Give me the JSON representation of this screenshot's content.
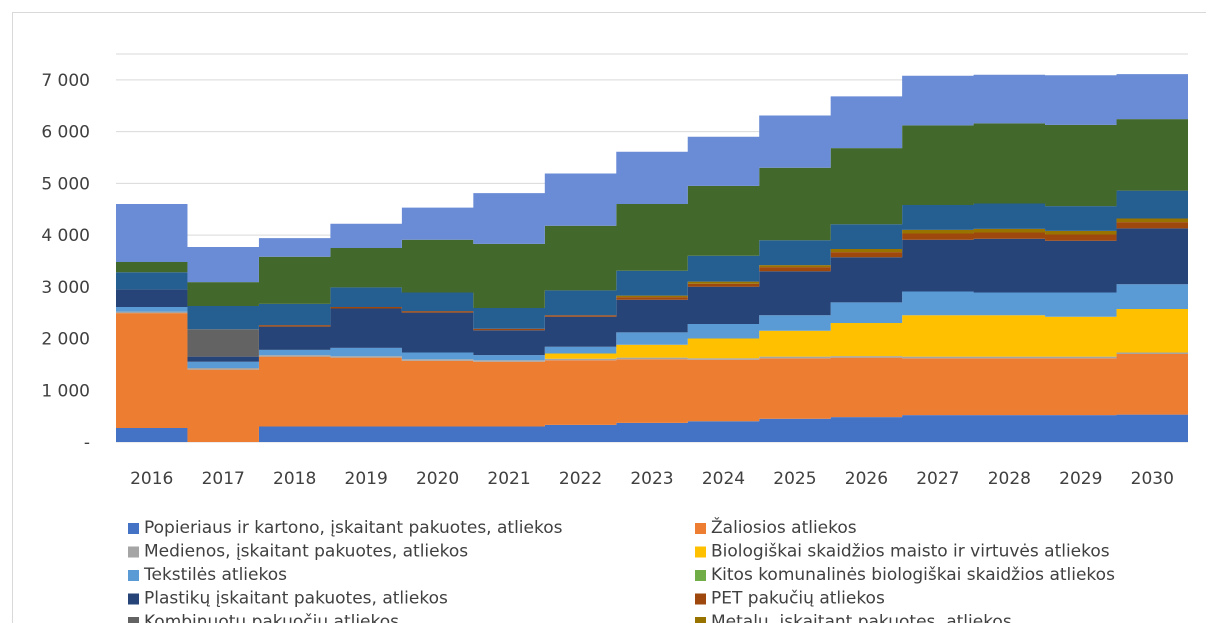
{
  "chart_data": {
    "type": "area",
    "x": [
      "2016",
      "2017",
      "2018",
      "2019",
      "2020",
      "2021",
      "2022",
      "2023",
      "2024",
      "2025",
      "2026",
      "2027",
      "2028",
      "2029",
      "2030"
    ],
    "ylim": [
      0,
      7500
    ],
    "yticks": [
      0,
      1000,
      2000,
      3000,
      4000,
      5000,
      6000,
      7000
    ],
    "ytick_labels": [
      "-",
      "1 000",
      "2 000",
      "3 000",
      "4 000",
      "5 000",
      "6 000",
      "7 000"
    ],
    "stacked": true,
    "step": true,
    "grid": true,
    "legend": "bottom",
    "series": [
      {
        "name": "Popieriaus ir kartono, įskaitant pakuotes, atliekos",
        "color": "#4472C4",
        "values": [
          270,
          0,
          300,
          300,
          300,
          300,
          330,
          370,
          400,
          450,
          480,
          520,
          520,
          520,
          530
        ]
      },
      {
        "name": "Žaliosios atliekos",
        "color": "#ED7D31",
        "values": [
          2220,
          1400,
          1350,
          1330,
          1270,
          1250,
          1250,
          1230,
          1190,
          1170,
          1150,
          1100,
          1100,
          1100,
          1170
        ]
      },
      {
        "name": "Medienos, įskaitant pakuotes, atliekos",
        "color": "#A5A5A5",
        "values": [
          30,
          30,
          30,
          30,
          30,
          30,
          30,
          30,
          30,
          30,
          30,
          30,
          30,
          30,
          30
        ]
      },
      {
        "name": "Biologiškai skaidžios maisto ir virtuvės atliekos",
        "color": "#FFC000",
        "values": [
          0,
          0,
          0,
          0,
          0,
          0,
          100,
          250,
          380,
          500,
          640,
          800,
          800,
          770,
          840
        ]
      },
      {
        "name": "Tekstilės atliekos",
        "color": "#5B9BD5",
        "values": [
          90,
          120,
          100,
          160,
          130,
          100,
          130,
          240,
          280,
          300,
          400,
          460,
          440,
          470,
          480
        ]
      },
      {
        "name": "Kitos komunalinės biologiškai skaidžios atliekos",
        "color": "#70AD47",
        "values": [
          0,
          0,
          0,
          0,
          0,
          0,
          0,
          0,
          0,
          0,
          0,
          0,
          0,
          0,
          0
        ]
      },
      {
        "name": "Plastikų įskaitant pakuotes, atliekos",
        "color": "#264478",
        "values": [
          340,
          100,
          450,
          760,
          770,
          480,
          580,
          630,
          720,
          850,
          870,
          1000,
          1040,
          1000,
          1080
        ]
      },
      {
        "name": "PET pakučių atliekos",
        "color": "#9E480E",
        "values": [
          0,
          0,
          30,
          30,
          30,
          30,
          30,
          50,
          60,
          80,
          100,
          120,
          120,
          120,
          120
        ]
      },
      {
        "name": "Kombinuotų pakuočių atliekos",
        "color": "#636363",
        "values": [
          0,
          530,
          0,
          0,
          0,
          0,
          0,
          0,
          0,
          0,
          0,
          0,
          0,
          0,
          0
        ]
      },
      {
        "name": "Metalų, įskaitant pakuotes, atliekos",
        "color": "#997300",
        "values": [
          0,
          0,
          0,
          0,
          0,
          0,
          0,
          30,
          40,
          40,
          60,
          70,
          70,
          70,
          70
        ]
      },
      {
        "name": "",
        "color": "#255E91",
        "values": [
          330,
          450,
          410,
          380,
          360,
          400,
          480,
          480,
          500,
          480,
          480,
          480,
          490,
          480,
          540
        ]
      },
      {
        "name": "",
        "color": "#43682B",
        "values": [
          200,
          460,
          910,
          760,
          1020,
          1240,
          1250,
          1290,
          1350,
          1400,
          1470,
          1540,
          1550,
          1570,
          1380
        ]
      },
      {
        "name": "",
        "color": "#6A8BD6",
        "values": [
          1120,
          680,
          360,
          470,
          620,
          980,
          1010,
          1010,
          950,
          1010,
          1000,
          960,
          940,
          960,
          870
        ]
      }
    ]
  }
}
